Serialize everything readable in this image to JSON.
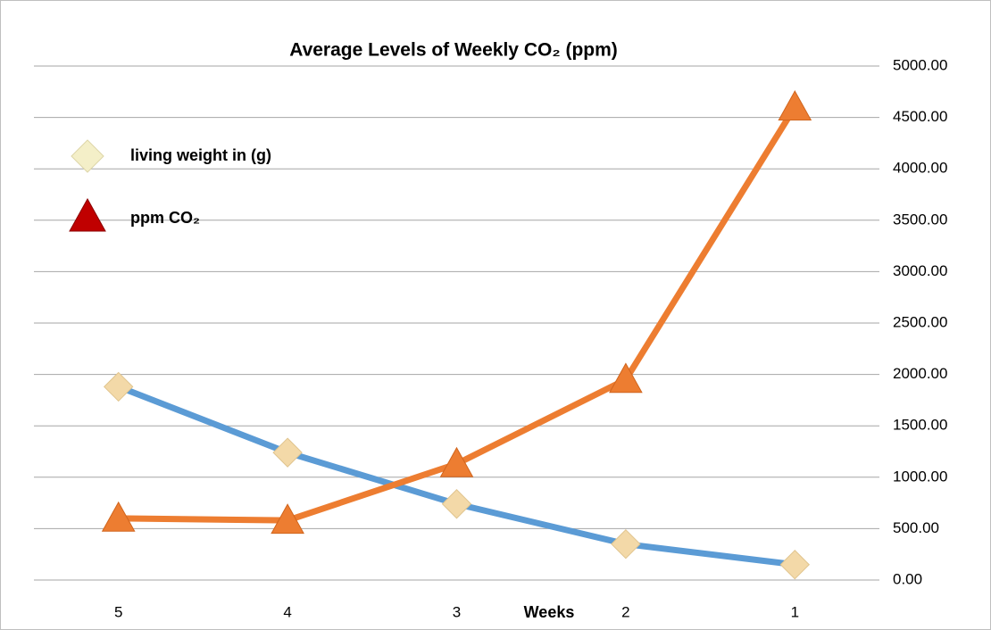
{
  "chart_data": {
    "type": "line",
    "title": "Average Levels of Weekly CO₂ (ppm)",
    "x_label": "Weeks",
    "categories": [
      "5",
      "4",
      "3",
      "2",
      "1"
    ],
    "series": [
      {
        "name": "living weight in (g)",
        "color": "#5b9bd5",
        "marker_color": "#f3d9a8",
        "values": [
          1880,
          1240,
          740,
          350,
          150
        ]
      },
      {
        "name": "ppm CO₂",
        "color": "#ed7d31",
        "marker_color": "#ed7d31",
        "values": [
          600,
          580,
          1130,
          1950,
          4600
        ]
      }
    ],
    "ylim": [
      0,
      5000
    ],
    "yticks": [
      {
        "value": 0,
        "label": "0.00"
      },
      {
        "value": 500,
        "label": "500.00"
      },
      {
        "value": 1000,
        "label": "1000.00"
      },
      {
        "value": 1500,
        "label": "1500.00"
      },
      {
        "value": 2000,
        "label": "2000.00"
      },
      {
        "value": 2500,
        "label": "2500.00"
      },
      {
        "value": 3000,
        "label": "3000.00"
      },
      {
        "value": 3500,
        "label": "3500.00"
      },
      {
        "value": 4000,
        "label": "4000.00"
      },
      {
        "value": 4500,
        "label": "4500.00"
      },
      {
        "value": 5000,
        "label": "5000.00"
      }
    ],
    "grid": true,
    "legend": "upper left"
  }
}
